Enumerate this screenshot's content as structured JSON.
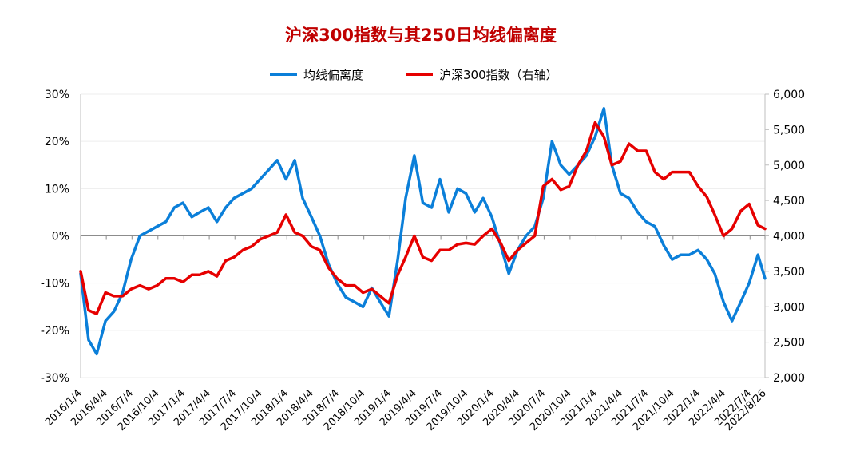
{
  "chart_data": {
    "type": "line",
    "title": "沪深300指数与其250日均线偏离度",
    "legend_position": "top",
    "grid": true,
    "colors": {
      "title": "#C00000",
      "deviation": "#0B7FD9",
      "index": "#E60000",
      "axis": "#BFBFBF",
      "grid": "#EDEDED"
    },
    "y_left": {
      "ylim": [
        -30,
        30
      ],
      "ticks": [
        "-30%",
        "-20%",
        "-10%",
        "0%",
        "10%",
        "20%",
        "30%"
      ],
      "tick_values": [
        -30,
        -20,
        -10,
        0,
        10,
        20,
        30
      ]
    },
    "y_right": {
      "ylim": [
        2000,
        6000
      ],
      "ticks": [
        "2,000",
        "2,500",
        "3,000",
        "3,500",
        "4,000",
        "4,500",
        "5,000",
        "5,500",
        "6,000"
      ],
      "tick_values": [
        2000,
        2500,
        3000,
        3500,
        4000,
        4500,
        5000,
        5500,
        6000
      ]
    },
    "x_ticks": [
      "2016/1/4",
      "2016/4/4",
      "2016/7/4",
      "2016/10/4",
      "2017/1/4",
      "2017/4/4",
      "2017/7/4",
      "2017/10/4",
      "2018/1/4",
      "2018/4/4",
      "2018/7/4",
      "2018/10/4",
      "2019/1/4",
      "2019/4/4",
      "2019/7/4",
      "2019/10/4",
      "2020/1/4",
      "2020/4/4",
      "2020/7/4",
      "2020/10/4",
      "2021/1/4",
      "2021/4/4",
      "2021/7/4",
      "2021/10/4",
      "2022/1/4",
      "2022/4/4",
      "2022/7/4",
      "2022/8/26"
    ],
    "series": [
      {
        "name": "均线偏离度",
        "axis": "left",
        "x": [
          "2016/1/4",
          "2016/2/1",
          "2016/3/1",
          "2016/4/1",
          "2016/5/1",
          "2016/6/1",
          "2016/7/1",
          "2016/8/1",
          "2016/9/1",
          "2016/10/1",
          "2016/11/1",
          "2016/12/1",
          "2017/1/1",
          "2017/2/1",
          "2017/3/1",
          "2017/4/1",
          "2017/5/1",
          "2017/6/1",
          "2017/7/1",
          "2017/8/1",
          "2017/9/1",
          "2017/10/1",
          "2017/11/1",
          "2017/12/1",
          "2018/1/1",
          "2018/2/1",
          "2018/3/1",
          "2018/4/1",
          "2018/5/1",
          "2018/6/1",
          "2018/7/1",
          "2018/8/1",
          "2018/9/1",
          "2018/10/1",
          "2018/11/1",
          "2018/12/1",
          "2019/1/1",
          "2019/2/1",
          "2019/3/1",
          "2019/4/1",
          "2019/5/1",
          "2019/6/1",
          "2019/7/1",
          "2019/8/1",
          "2019/9/1",
          "2019/10/1",
          "2019/11/1",
          "2019/12/1",
          "2020/1/1",
          "2020/2/1",
          "2020/3/1",
          "2020/4/1",
          "2020/5/1",
          "2020/6/1",
          "2020/7/1",
          "2020/8/1",
          "2020/9/1",
          "2020/10/1",
          "2020/11/1",
          "2020/12/1",
          "2021/1/1",
          "2021/2/1",
          "2021/3/1",
          "2021/4/1",
          "2021/5/1",
          "2021/6/1",
          "2021/7/1",
          "2021/8/1",
          "2021/9/1",
          "2021/10/1",
          "2021/11/1",
          "2021/12/1",
          "2022/1/1",
          "2022/2/1",
          "2022/3/1",
          "2022/4/1",
          "2022/5/1",
          "2022/6/1",
          "2022/7/1",
          "2022/8/1",
          "2022/8/26"
        ],
        "values": [
          -8,
          -22,
          -25,
          -18,
          -16,
          -12,
          -5,
          0,
          1,
          2,
          3,
          6,
          7,
          4,
          5,
          6,
          3,
          6,
          8,
          9,
          10,
          12,
          14,
          16,
          12,
          16,
          8,
          4,
          0,
          -6,
          -10,
          -13,
          -14,
          -15,
          -11,
          -14,
          -17,
          -5,
          8,
          17,
          7,
          6,
          12,
          5,
          10,
          9,
          5,
          8,
          4,
          -2,
          -8,
          -3,
          0,
          2,
          8,
          20,
          15,
          13,
          15,
          17,
          21,
          27,
          15,
          9,
          8,
          5,
          3,
          2,
          -2,
          -5,
          -4,
          -4,
          -3,
          -5,
          -8,
          -14,
          -18,
          -14,
          -10,
          -4,
          -9
        ],
        "color": "#0B7FD9"
      },
      {
        "name": "沪深300指数（右轴）",
        "axis": "right",
        "x": [
          "2016/1/4",
          "2016/2/1",
          "2016/3/1",
          "2016/4/1",
          "2016/5/1",
          "2016/6/1",
          "2016/7/1",
          "2016/8/1",
          "2016/9/1",
          "2016/10/1",
          "2016/11/1",
          "2016/12/1",
          "2017/1/1",
          "2017/2/1",
          "2017/3/1",
          "2017/4/1",
          "2017/5/1",
          "2017/6/1",
          "2017/7/1",
          "2017/8/1",
          "2017/9/1",
          "2017/10/1",
          "2017/11/1",
          "2017/12/1",
          "2018/1/1",
          "2018/2/1",
          "2018/3/1",
          "2018/4/1",
          "2018/5/1",
          "2018/6/1",
          "2018/7/1",
          "2018/8/1",
          "2018/9/1",
          "2018/10/1",
          "2018/11/1",
          "2018/12/1",
          "2019/1/1",
          "2019/2/1",
          "2019/3/1",
          "2019/4/1",
          "2019/5/1",
          "2019/6/1",
          "2019/7/1",
          "2019/8/1",
          "2019/9/1",
          "2019/10/1",
          "2019/11/1",
          "2019/12/1",
          "2020/1/1",
          "2020/2/1",
          "2020/3/1",
          "2020/4/1",
          "2020/5/1",
          "2020/6/1",
          "2020/7/1",
          "2020/8/1",
          "2020/9/1",
          "2020/10/1",
          "2020/11/1",
          "2020/12/1",
          "2021/1/1",
          "2021/2/1",
          "2021/3/1",
          "2021/4/1",
          "2021/5/1",
          "2021/6/1",
          "2021/7/1",
          "2021/8/1",
          "2021/9/1",
          "2021/10/1",
          "2021/11/1",
          "2021/12/1",
          "2022/1/1",
          "2022/2/1",
          "2022/3/1",
          "2022/4/1",
          "2022/5/1",
          "2022/6/1",
          "2022/7/1",
          "2022/8/1",
          "2022/8/26"
        ],
        "values": [
          3500,
          2950,
          2900,
          3200,
          3150,
          3150,
          3250,
          3300,
          3250,
          3300,
          3400,
          3400,
          3350,
          3450,
          3450,
          3500,
          3430,
          3650,
          3700,
          3800,
          3850,
          3950,
          4000,
          4050,
          4300,
          4050,
          4000,
          3850,
          3800,
          3550,
          3400,
          3300,
          3300,
          3200,
          3250,
          3150,
          3050,
          3450,
          3700,
          4000,
          3700,
          3650,
          3800,
          3800,
          3880,
          3900,
          3880,
          4000,
          4100,
          3900,
          3650,
          3800,
          3900,
          4000,
          4700,
          4800,
          4650,
          4700,
          5000,
          5200,
          5600,
          5400,
          5000,
          5050,
          5300,
          5200,
          5200,
          4900,
          4800,
          4900,
          4900,
          4900,
          4700,
          4550,
          4300,
          4000,
          4100,
          4350,
          4450,
          4150,
          4100
        ],
        "color": "#E60000"
      }
    ]
  }
}
